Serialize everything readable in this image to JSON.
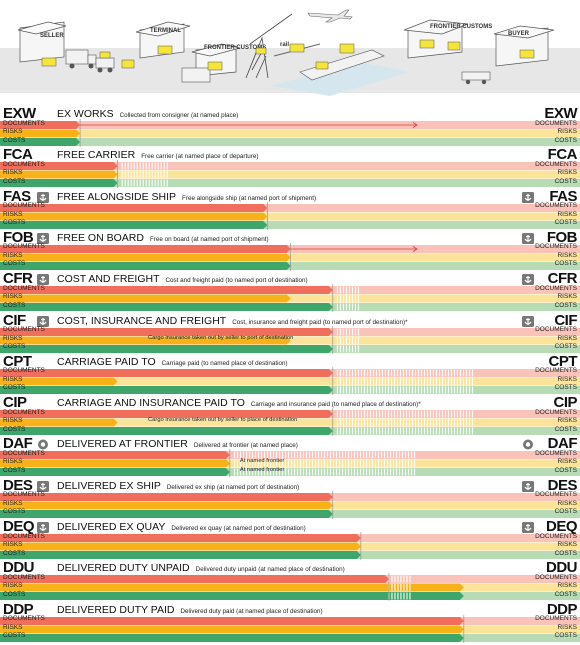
{
  "scene_labels": {
    "seller": "SELLER",
    "terminal": "TERMINAL",
    "frontier_customs_left": "FRONTIER CUSTOMS",
    "rail": "rail",
    "frontier_customs_right": "FRONTIER CUSTOMS",
    "buyer": "BUYER"
  },
  "categories": [
    "DOCUMENTS",
    "RISKS",
    "COSTS"
  ],
  "colors": {
    "documents_seller": "#f06f5c",
    "documents_buyer": "#f9c3ba",
    "risks_seller": "#f7b21a",
    "risks_buyer": "#fbe39a",
    "costs_seller": "#3ea66a",
    "costs_buyer": "#b7dcb5",
    "marker": "#e43b3b",
    "scene_bg": "#e7e7e8",
    "box": "#f5e53a"
  },
  "terms": [
    {
      "code": "EXW",
      "name": "EX WORKS",
      "desc": "Collected from consigner (at named place)",
      "icon": "none",
      "doc_end": 0.06,
      "risk_end": 0.06,
      "cost_end": 0.06,
      "arrow_to": 0.78,
      "hatch": [],
      "note": ""
    },
    {
      "code": "FCA",
      "name": "FREE CARRIER",
      "desc": "Free carrier (at named place of departure)",
      "icon": "none",
      "doc_end": 0.14,
      "risk_end": 0.14,
      "cost_end": 0.14,
      "arrow_to": 0,
      "hatch": [
        [
          0.15,
          0.25
        ]
      ],
      "note": ""
    },
    {
      "code": "FAS",
      "name": "FREE ALONGSIDE SHIP",
      "desc": "Free alongside ship (at named port of shipment)",
      "icon": "anchor",
      "doc_end": 0.46,
      "risk_end": 0.46,
      "cost_end": 0.46,
      "arrow_to": 0,
      "hatch": [],
      "note": ""
    },
    {
      "code": "FOB",
      "name": "FREE ON BOARD",
      "desc": "Free on board (at named port of shipment)",
      "icon": "anchor",
      "doc_end": 0.51,
      "risk_end": 0.51,
      "cost_end": 0.51,
      "arrow_to": 0.78,
      "hatch": [],
      "note": ""
    },
    {
      "code": "CFR",
      "name": "COST AND FREIGHT",
      "desc": "Cost and freight paid (to named port of destination)",
      "icon": "anchor",
      "doc_end": 0.6,
      "risk_end": 0.51,
      "cost_end": 0.6,
      "arrow_to": 0,
      "hatch": [
        [
          0.61,
          0.66
        ]
      ],
      "note": ""
    },
    {
      "code": "CIF",
      "name": "COST, INSURANCE AND FREIGHT",
      "desc": "Cost, insurance and freight paid (to named port of destination)*",
      "icon": "anchor",
      "doc_end": 0.6,
      "risk_end": 0.51,
      "cost_end": 0.6,
      "arrow_to": 0,
      "hatch": [
        [
          0.61,
          0.66
        ]
      ],
      "note": "Cargo insurance taken out by seller to port of destination"
    },
    {
      "code": "CPT",
      "name": "CARRIAGE PAID TO",
      "desc": "Carriage paid (to named place of destination)",
      "icon": "none",
      "doc_end": 0.6,
      "risk_end": 0.14,
      "cost_end": 0.6,
      "arrow_to": 0,
      "hatch": [
        [
          0.61,
          0.9
        ]
      ],
      "note": ""
    },
    {
      "code": "CIP",
      "name": "CARRIAGE AND INSURANCE PAID TO",
      "desc": "Carriage and insurance paid (to named place of destination)*",
      "icon": "none",
      "doc_end": 0.6,
      "risk_end": 0.14,
      "cost_end": 0.6,
      "arrow_to": 0,
      "hatch": [
        [
          0.61,
          0.9
        ]
      ],
      "note": "Cargo insurance taken out by seller to place of destination"
    },
    {
      "code": "DAF",
      "name": "DELIVERED AT FRONTIER",
      "desc": "Delivered at frontier (at named place)",
      "icon": "target",
      "doc_end": 0.38,
      "risk_end": 0.38,
      "cost_end": 0.38,
      "arrow_to": 0,
      "hatch": [
        [
          0.39,
          0.78
        ]
      ],
      "note": "At named frontier"
    },
    {
      "code": "DES",
      "name": "DELIVERED EX SHIP",
      "desc": "Delivered ex ship (at named port of destination)",
      "icon": "anchor",
      "doc_end": 0.6,
      "risk_end": 0.6,
      "cost_end": 0.6,
      "arrow_to": 0,
      "hatch": [],
      "note": ""
    },
    {
      "code": "DEQ",
      "name": "DELIVERED EX QUAY",
      "desc": "Delivered ex quay (at named port of destination)",
      "icon": "anchor",
      "doc_end": 0.66,
      "risk_end": 0.66,
      "cost_end": 0.66,
      "arrow_to": 0,
      "hatch": [],
      "note": ""
    },
    {
      "code": "DDU",
      "name": "DELIVERED DUTY UNPAID",
      "desc": "Delivered duty unpaid (at named place of destination)",
      "icon": "none",
      "doc_end": 0.72,
      "risk_end": 0.88,
      "cost_end": 0.88,
      "arrow_to": 0,
      "hatch": [
        [
          0.72,
          0.77
        ]
      ],
      "note": ""
    },
    {
      "code": "DDP",
      "name": "DELIVERED DUTY PAID",
      "desc": "Delivered duty paid (at named place of destination)",
      "icon": "none",
      "doc_end": 0.88,
      "risk_end": 0.88,
      "cost_end": 0.88,
      "arrow_to": 0,
      "hatch": [],
      "note": ""
    }
  ]
}
